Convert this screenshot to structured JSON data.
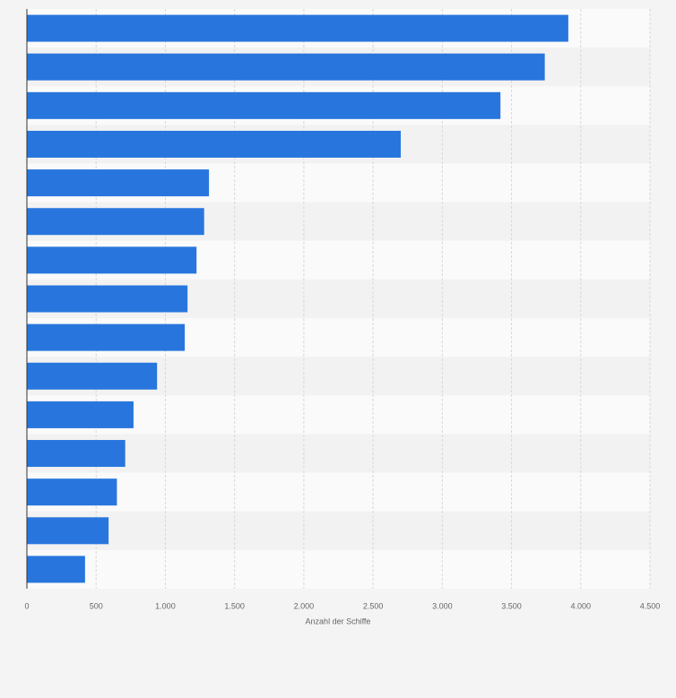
{
  "chart_data": {
    "type": "bar",
    "orientation": "horizontal",
    "categories": [
      null,
      null,
      null,
      null,
      null,
      null,
      null,
      null,
      null,
      null,
      null,
      null,
      null,
      null,
      null
    ],
    "values": [
      3910,
      3740,
      3420,
      2700,
      1315,
      1280,
      1225,
      1160,
      1140,
      940,
      770,
      710,
      650,
      590,
      420
    ],
    "color": "#2876dd",
    "xlabel": "Anzahl der Schiffe",
    "xlim": [
      0,
      4500
    ],
    "xticks": [
      0,
      500,
      {
        "value": 1000,
        "label": "1.000"
      },
      {
        "value": 1500,
        "label": "1.500"
      },
      {
        "value": 2000,
        "label": "2.000"
      },
      {
        "value": 2500,
        "label": "2.500"
      },
      {
        "value": 3000,
        "label": "3.000"
      },
      {
        "value": 3500,
        "label": "3.500"
      },
      {
        "value": 4000,
        "label": "4.000"
      },
      {
        "value": 4500,
        "label": "4.500"
      }
    ],
    "grid": true
  }
}
